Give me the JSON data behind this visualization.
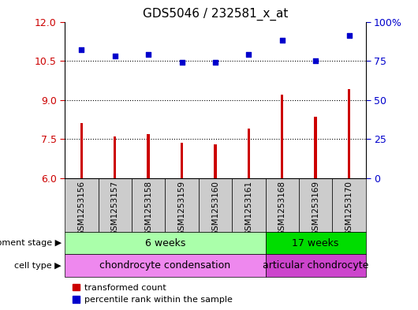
{
  "title": "GDS5046 / 232581_x_at",
  "samples": [
    "GSM1253156",
    "GSM1253157",
    "GSM1253158",
    "GSM1253159",
    "GSM1253160",
    "GSM1253161",
    "GSM1253168",
    "GSM1253169",
    "GSM1253170"
  ],
  "transformed_count": [
    8.1,
    7.6,
    7.7,
    7.35,
    7.3,
    7.9,
    9.2,
    8.35,
    9.4
  ],
  "percentile_rank": [
    82,
    78,
    79,
    74,
    74,
    79,
    88,
    75,
    91
  ],
  "ylim_left": [
    6,
    12
  ],
  "ylim_right": [
    0,
    100
  ],
  "yticks_left": [
    6,
    7.5,
    9,
    10.5,
    12
  ],
  "yticks_right": [
    0,
    25,
    50,
    75,
    100
  ],
  "ytick_labels_right": [
    "0",
    "25",
    "50",
    "75",
    "100%"
  ],
  "bar_color": "#cc0000",
  "dot_color": "#0000cc",
  "left_tick_color": "#cc0000",
  "right_tick_color": "#0000cc",
  "development_stage_groups": [
    {
      "label": "6 weeks",
      "start": 0,
      "end": 6,
      "color": "#aaffaa"
    },
    {
      "label": "17 weeks",
      "start": 6,
      "end": 9,
      "color": "#00dd00"
    }
  ],
  "cell_type_groups": [
    {
      "label": "chondrocyte condensation",
      "start": 0,
      "end": 6,
      "color": "#ee88ee"
    },
    {
      "label": "articular chondrocyte",
      "start": 6,
      "end": 9,
      "color": "#cc44cc"
    }
  ],
  "legend_items": [
    {
      "color": "#cc0000",
      "label": "transformed count"
    },
    {
      "color": "#0000cc",
      "label": "percentile rank within the sample"
    }
  ],
  "dev_stage_label": "development stage",
  "cell_type_label": "cell type",
  "sample_box_color": "#cccccc",
  "plot_bg": "#ffffff"
}
